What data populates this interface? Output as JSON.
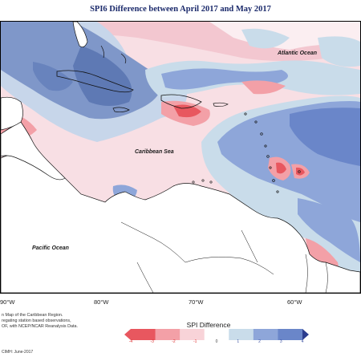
{
  "title": "SPI6 Difference between April 2017 and May 2017",
  "labels": {
    "atlantic": "Atlantic Ocean",
    "caribbean": "Caribbean Sea",
    "pacific": "Pacific Ocean"
  },
  "longitudes": [
    "90°W",
    "80°W",
    "70°W",
    "60°W"
  ],
  "credit_lines": [
    "n Map of the Caribbean Region.",
    "regating station based observations,",
    "OF, with NCEP/NCAR Reanalysis Data."
  ],
  "producer": "CIMH: June-2017",
  "legend": {
    "title": "SPI Difference",
    "ticks": [
      "-4",
      "-3",
      "-2",
      "-1",
      "0",
      "1",
      "2",
      "3",
      "4"
    ],
    "colors": [
      "#e8575f",
      "#f3a0a7",
      "#f8d3d8",
      "#ffffff",
      "#c9dcea",
      "#8ea6d9",
      "#6a86c9",
      "#4f6fa8",
      "#2b3c8e"
    ]
  }
}
